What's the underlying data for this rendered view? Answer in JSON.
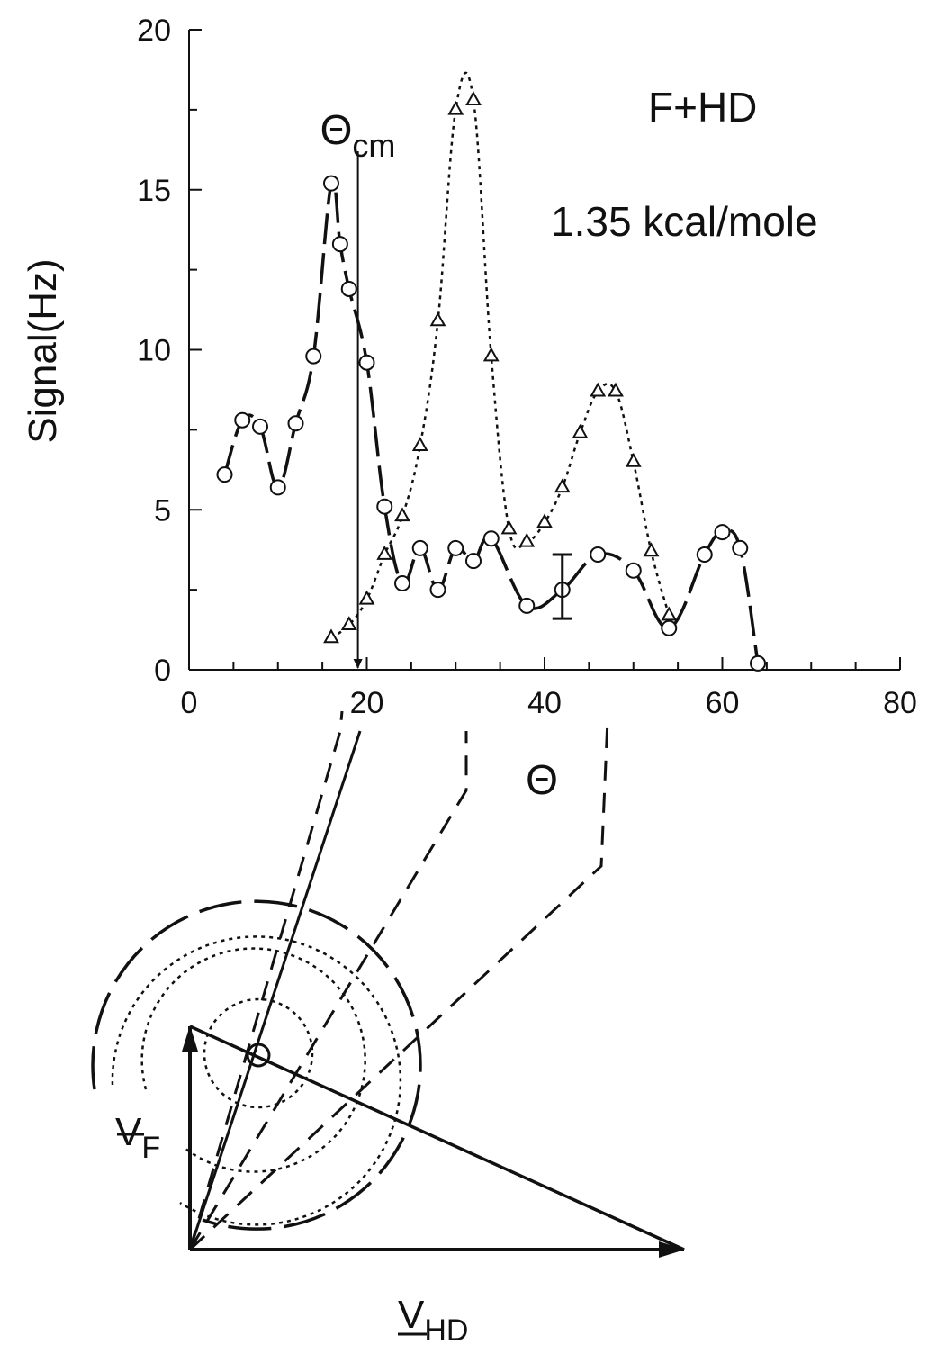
{
  "chart_data": {
    "type": "line",
    "title": "F+HD",
    "subtitle": "1.35 kcal/mole",
    "xlabel": "Θ",
    "ylabel": "Signal(Hz)",
    "xlim": [
      0,
      80
    ],
    "ylim": [
      0,
      20
    ],
    "x_ticks": [
      0,
      20,
      40,
      60,
      80
    ],
    "y_ticks": [
      0,
      5,
      10,
      15,
      20
    ],
    "grid": false,
    "legend": "none",
    "annotation": {
      "label": "Θcm",
      "label_main": "Θ",
      "label_sub": "cm",
      "x": 19
    },
    "error_bar": {
      "x": 42,
      "y_low": 1.6,
      "y_high": 3.6
    },
    "series": [
      {
        "marker": "circle",
        "line": "long-dash",
        "x": [
          4,
          6,
          8,
          10,
          12,
          14,
          16,
          17,
          18,
          20,
          22,
          24,
          26,
          28,
          30,
          32,
          34,
          38,
          42,
          46,
          50,
          54,
          58,
          60,
          62,
          64
        ],
        "y": [
          6.1,
          7.8,
          7.6,
          5.7,
          7.7,
          9.8,
          15.2,
          13.3,
          11.9,
          9.6,
          5.1,
          2.7,
          3.8,
          2.5,
          3.8,
          3.4,
          4.1,
          2.0,
          2.5,
          3.6,
          3.1,
          1.3,
          3.6,
          4.3,
          3.8,
          0.2
        ]
      },
      {
        "marker": "triangle",
        "line": "dotted",
        "x": [
          16,
          18,
          20,
          22,
          24,
          26,
          28,
          30,
          32,
          34,
          36,
          38,
          40,
          42,
          44,
          46,
          48,
          50,
          52,
          54
        ],
        "y": [
          1.0,
          1.4,
          2.2,
          3.6,
          4.8,
          7.0,
          10.9,
          17.5,
          17.8,
          9.8,
          4.4,
          4.0,
          4.6,
          5.7,
          7.4,
          8.7,
          8.7,
          6.5,
          3.7,
          1.7
        ]
      }
    ]
  },
  "diagram": {
    "vf_label": "V",
    "vf_sub": "F",
    "vhd_label": "V",
    "vhd_sub": "HD"
  }
}
